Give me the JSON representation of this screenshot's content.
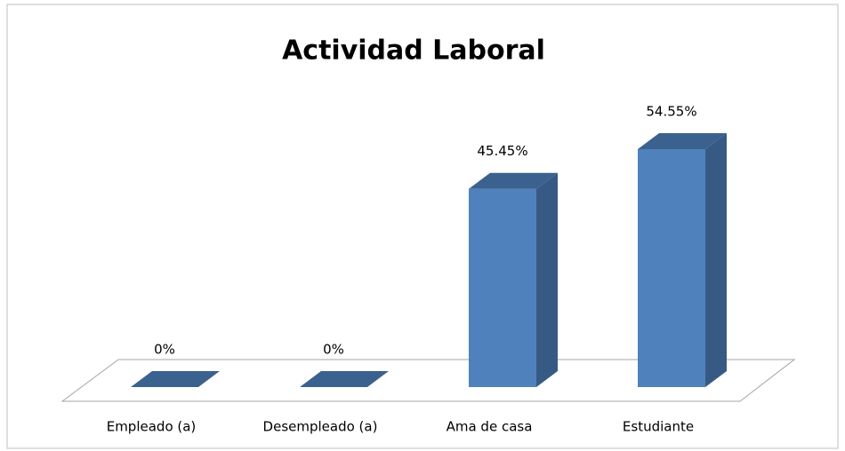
{
  "chart_data": {
    "type": "bar3d",
    "title": "Actividad Laboral",
    "categories": [
      "Empleado (a)",
      "Desempleado (a)",
      "Ama de casa",
      "Estudiante"
    ],
    "values": [
      0,
      0,
      45.45,
      54.55
    ],
    "value_labels": [
      "0%",
      "0%",
      "45.45%",
      "54.55%"
    ],
    "color": "#4f81bd"
  }
}
